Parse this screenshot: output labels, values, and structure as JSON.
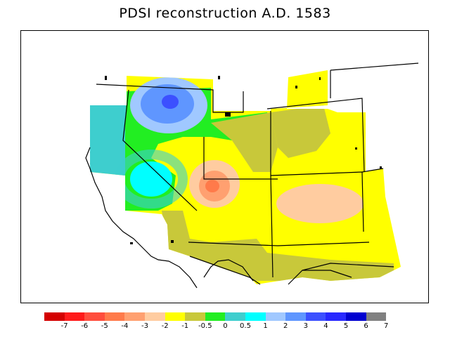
{
  "title": "PDSI reconstruction A.D. 1583",
  "legend": {
    "colors": [
      "#d40000",
      "#ff1a1a",
      "#ff4d3d",
      "#ff7a4a",
      "#ffa070",
      "#ffcca0",
      "#ffff00",
      "#c8c83a",
      "#22ee22",
      "#3ecece",
      "#00ffff",
      "#a0c8ff",
      "#5f96ff",
      "#3c50ff",
      "#2828ff",
      "#0000d0",
      "#808080"
    ],
    "ticks": [
      "-7",
      "-6",
      "-5",
      "-4",
      "-3",
      "-2",
      "-1",
      "-0.5",
      "0",
      "0.5",
      "1",
      "2",
      "3",
      "4",
      "5",
      "6",
      "7"
    ]
  },
  "colors": {
    "background": "#ffffff",
    "coast": "#000000"
  }
}
